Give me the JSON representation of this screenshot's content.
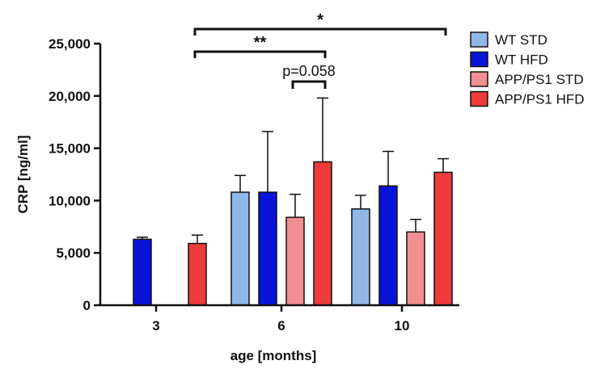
{
  "chart_data": {
    "type": "bar",
    "xlabel": "age [months]",
    "ylabel": "CRP [ng/ml]",
    "ylim": [
      0,
      25000
    ],
    "yticks": [
      0,
      5000,
      10000,
      15000,
      20000,
      25000
    ],
    "ytick_labels": [
      "0",
      "5,000",
      "10,000",
      "15,000",
      "20,000",
      "25,000"
    ],
    "categories": [
      "3",
      "6",
      "10"
    ],
    "series": [
      {
        "name": "WT STD",
        "color": "#8fb8e8",
        "values": [
          null,
          10800,
          9200
        ],
        "errors": [
          null,
          1600,
          1300
        ]
      },
      {
        "name": "WT HFD",
        "color": "#0a14d8",
        "values": [
          6300,
          10800,
          11400
        ],
        "errors": [
          200,
          5800,
          3300
        ]
      },
      {
        "name": "APP/PS1 STD",
        "color": "#f08f8f",
        "values": [
          null,
          8400,
          7000
        ],
        "errors": [
          null,
          2200,
          1200
        ]
      },
      {
        "name": "APP/PS1 HFD",
        "color": "#ee3b3b",
        "values": [
          5900,
          13700,
          12700
        ],
        "errors": [
          800,
          6100,
          1300
        ]
      }
    ],
    "legend_position": "right",
    "grid": false,
    "significance": [
      {
        "label": "*",
        "from": {
          "category": "3",
          "series": "APP/PS1 HFD"
        },
        "to": {
          "category": "10",
          "series": "APP/PS1 HFD"
        }
      },
      {
        "label": "**",
        "from": {
          "category": "3",
          "series": "APP/PS1 HFD"
        },
        "to": {
          "category": "6",
          "series": "APP/PS1 HFD"
        }
      },
      {
        "label": "p=0.058",
        "from": {
          "category": "6",
          "series": "APP/PS1 STD"
        },
        "to": {
          "category": "6",
          "series": "APP/PS1 HFD"
        }
      }
    ]
  }
}
